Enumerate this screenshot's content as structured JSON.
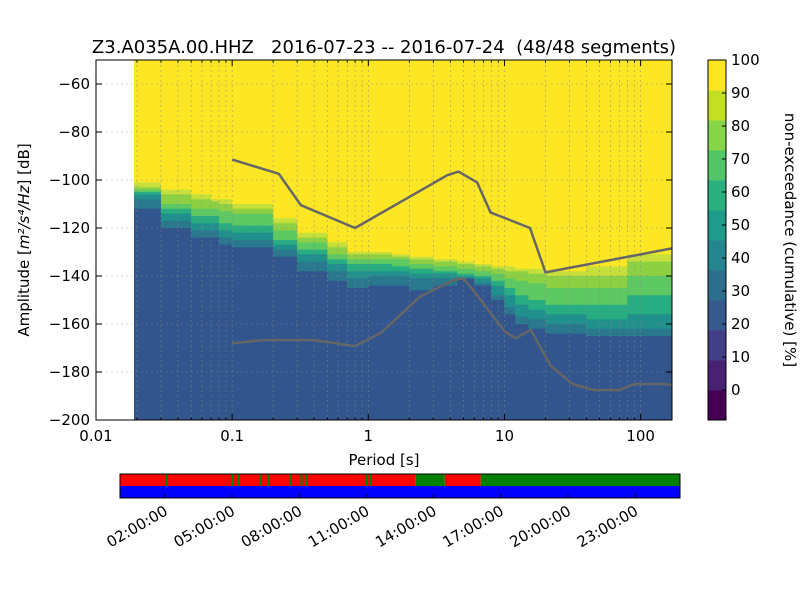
{
  "chart_data": {
    "type": "heatmap",
    "title": "Z3.A035A.00.HHZ   2016-07-23 -- 2016-07-24  (48/48 segments)",
    "xlabel": "Period [s]",
    "ylabel_prefix": "Amplitude [",
    "ylabel_unit": "m²/s⁴/Hz",
    "ylabel_suffix": "] [dB]",
    "x_scale": "log",
    "xlim": [
      0.01,
      170
    ],
    "ylim": [
      -200,
      -50
    ],
    "x_ticks": [
      {
        "value": 0.01,
        "label": "0.01"
      },
      {
        "value": 0.1,
        "label": "0.1"
      },
      {
        "value": 1,
        "label": "1"
      },
      {
        "value": 10,
        "label": "10"
      },
      {
        "value": 100,
        "label": "100"
      }
    ],
    "y_ticks": [
      {
        "value": -60,
        "label": "−60"
      },
      {
        "value": -80,
        "label": "−80"
      },
      {
        "value": -100,
        "label": "−100"
      },
      {
        "value": -120,
        "label": "−120"
      },
      {
        "value": -140,
        "label": "−140"
      },
      {
        "value": -160,
        "label": "−160"
      },
      {
        "value": -180,
        "label": "−180"
      },
      {
        "value": -200,
        "label": "−200"
      }
    ],
    "grid": true,
    "data_start_period": 0.019,
    "bands": [
      {
        "level": 30,
        "color": "#31558c",
        "upper": [
          [
            0.019,
            -112
          ],
          [
            0.03,
            -120
          ],
          [
            0.05,
            -124
          ],
          [
            0.08,
            -127
          ],
          [
            0.1,
            -128
          ],
          [
            0.2,
            -132
          ],
          [
            0.3,
            -138
          ],
          [
            0.5,
            -142
          ],
          [
            0.7,
            -145
          ],
          [
            1,
            -144
          ],
          [
            1.5,
            -144
          ],
          [
            2,
            -146
          ],
          [
            3,
            -144
          ],
          [
            4.5,
            -141
          ],
          [
            6,
            -144
          ],
          [
            8,
            -150
          ],
          [
            10,
            -156
          ],
          [
            12,
            -160
          ],
          [
            15,
            -162
          ],
          [
            20,
            -164
          ],
          [
            40,
            -165
          ],
          [
            80,
            -165
          ],
          [
            170,
            -165
          ]
        ]
      },
      {
        "level": 40,
        "color": "#29788e",
        "upper": [
          [
            0.019,
            -108
          ],
          [
            0.03,
            -117
          ],
          [
            0.05,
            -121
          ],
          [
            0.08,
            -124
          ],
          [
            0.1,
            -125
          ],
          [
            0.2,
            -129
          ],
          [
            0.3,
            -134
          ],
          [
            0.5,
            -138
          ],
          [
            0.7,
            -141
          ],
          [
            1,
            -140
          ],
          [
            1.5,
            -140
          ],
          [
            2,
            -141
          ],
          [
            3,
            -141
          ],
          [
            4.5,
            -141
          ],
          [
            6,
            -143
          ],
          [
            8,
            -148
          ],
          [
            10,
            -153
          ],
          [
            12,
            -157
          ],
          [
            15,
            -158
          ],
          [
            20,
            -160
          ],
          [
            40,
            -162
          ],
          [
            80,
            -162
          ],
          [
            170,
            -160
          ]
        ]
      },
      {
        "level": 50,
        "color": "#20908d",
        "upper": [
          [
            0.019,
            -106
          ],
          [
            0.03,
            -114
          ],
          [
            0.05,
            -118
          ],
          [
            0.08,
            -121
          ],
          [
            0.1,
            -122
          ],
          [
            0.2,
            -127
          ],
          [
            0.3,
            -131
          ],
          [
            0.5,
            -135
          ],
          [
            0.7,
            -138
          ],
          [
            1,
            -138
          ],
          [
            1.5,
            -138
          ],
          [
            2,
            -139
          ],
          [
            3,
            -139
          ],
          [
            4.5,
            -140
          ],
          [
            6,
            -141
          ],
          [
            8,
            -144
          ],
          [
            10,
            -148
          ],
          [
            12,
            -152
          ],
          [
            15,
            -154
          ],
          [
            20,
            -156
          ],
          [
            40,
            -158
          ],
          [
            80,
            -156
          ],
          [
            170,
            -152
          ]
        ]
      },
      {
        "level": 60,
        "color": "#27ad81",
        "upper": [
          [
            0.019,
            -105
          ],
          [
            0.03,
            -112
          ],
          [
            0.05,
            -115
          ],
          [
            0.08,
            -118
          ],
          [
            0.1,
            -119
          ],
          [
            0.2,
            -125
          ],
          [
            0.3,
            -129
          ],
          [
            0.5,
            -133
          ],
          [
            0.7,
            -135
          ],
          [
            1,
            -135
          ],
          [
            1.5,
            -136
          ],
          [
            2,
            -137
          ],
          [
            3,
            -138
          ],
          [
            4.5,
            -139
          ],
          [
            6,
            -140
          ],
          [
            8,
            -142
          ],
          [
            10,
            -145
          ],
          [
            12,
            -148
          ],
          [
            15,
            -150
          ],
          [
            20,
            -152
          ],
          [
            40,
            -152
          ],
          [
            80,
            -148
          ],
          [
            170,
            -144
          ]
        ]
      },
      {
        "level": 70,
        "color": "#5ec962",
        "upper": [
          [
            0.019,
            -104
          ],
          [
            0.03,
            -110
          ],
          [
            0.05,
            -112
          ],
          [
            0.08,
            -113
          ],
          [
            0.1,
            -114
          ],
          [
            0.2,
            -121
          ],
          [
            0.3,
            -126
          ],
          [
            0.5,
            -131
          ],
          [
            0.7,
            -133
          ],
          [
            1,
            -133
          ],
          [
            1.5,
            -133
          ],
          [
            2,
            -135
          ],
          [
            3,
            -136
          ],
          [
            4.5,
            -137
          ],
          [
            6,
            -138
          ],
          [
            8,
            -139
          ],
          [
            10,
            -141
          ],
          [
            12,
            -142
          ],
          [
            15,
            -143
          ],
          [
            20,
            -145
          ],
          [
            40,
            -145
          ],
          [
            80,
            -140
          ],
          [
            170,
            -136
          ]
        ]
      },
      {
        "level": 80,
        "color": "#8ed044",
        "upper": [
          [
            0.019,
            -103
          ],
          [
            0.03,
            -106
          ],
          [
            0.05,
            -108
          ],
          [
            0.07,
            -109
          ],
          [
            0.08,
            -110
          ],
          [
            0.1,
            -112
          ],
          [
            0.2,
            -118
          ],
          [
            0.3,
            -124
          ],
          [
            0.5,
            -128
          ],
          [
            0.7,
            -131
          ],
          [
            1,
            -131
          ],
          [
            1.5,
            -132
          ],
          [
            2,
            -133
          ],
          [
            3,
            -134
          ],
          [
            4.5,
            -135
          ],
          [
            6,
            -136
          ],
          [
            8,
            -137
          ],
          [
            10,
            -138
          ],
          [
            12,
            -138
          ],
          [
            15,
            -139
          ],
          [
            20,
            -140
          ],
          [
            40,
            -140
          ],
          [
            80,
            -134
          ],
          [
            170,
            -128
          ]
        ]
      },
      {
        "level": 90,
        "color": "#c6df3a",
        "upper": [
          [
            0.019,
            -101
          ],
          [
            0.03,
            -104
          ],
          [
            0.05,
            -106
          ],
          [
            0.07,
            -108
          ],
          [
            0.1,
            -110
          ],
          [
            0.2,
            -116
          ],
          [
            0.3,
            -122
          ],
          [
            0.5,
            -126
          ],
          [
            0.7,
            -130
          ],
          [
            1,
            -130
          ],
          [
            1.5,
            -131
          ],
          [
            2,
            -132
          ],
          [
            3,
            -133
          ],
          [
            4.5,
            -134
          ],
          [
            6,
            -135
          ],
          [
            8,
            -136
          ],
          [
            10,
            -136
          ],
          [
            12,
            -137
          ],
          [
            15,
            -137
          ],
          [
            20,
            -138
          ],
          [
            40,
            -136
          ],
          [
            80,
            -131
          ],
          [
            170,
            -125
          ]
        ]
      }
    ],
    "background_level": 100,
    "background_color": "#fde725",
    "noise_models": [
      {
        "points": [
          [
            0.1,
            -91.5
          ],
          [
            0.22,
            -97.4
          ],
          [
            0.32,
            -110.5
          ],
          [
            0.8,
            -120
          ],
          [
            3.8,
            -98
          ],
          [
            4.6,
            -96.5
          ],
          [
            6.3,
            -101
          ],
          [
            7.9,
            -113.5
          ],
          [
            15.4,
            -120
          ],
          [
            20,
            -138.5
          ],
          [
            170,
            -128.5
          ]
        ]
      },
      {
        "points": [
          [
            0.1,
            -168
          ],
          [
            0.17,
            -166.7
          ],
          [
            0.4,
            -166.7
          ],
          [
            0.8,
            -169.2
          ],
          [
            1.24,
            -163.7
          ],
          [
            2.4,
            -148.6
          ],
          [
            4.3,
            -141.5
          ],
          [
            5.0,
            -141.1
          ],
          [
            6.0,
            -146.5
          ],
          [
            10,
            -163
          ],
          [
            12,
            -166
          ],
          [
            15.6,
            -162.4
          ],
          [
            21.9,
            -177.5
          ],
          [
            31.6,
            -185
          ],
          [
            45,
            -187.5
          ],
          [
            70,
            -187.5
          ],
          [
            90,
            -185
          ],
          [
            150,
            -185
          ],
          [
            170,
            -185.5
          ]
        ]
      }
    ],
    "colorbar": {
      "label": "non-exceedance (cumulative) [%]",
      "levels": [
        0,
        10,
        20,
        30,
        40,
        50,
        60,
        70,
        80,
        90,
        100
      ],
      "colors": [
        "#440154",
        "#482173",
        "#433e85",
        "#38598c",
        "#2d708e",
        "#25858e",
        "#1e9b8a",
        "#2ab07f",
        "#52c569",
        "#86d549",
        "#c2df23",
        "#fde725"
      ],
      "ticks": [
        {
          "value": 0,
          "label": "0"
        },
        {
          "value": 10,
          "label": "10"
        },
        {
          "value": 20,
          "label": "20"
        },
        {
          "value": 30,
          "label": "30"
        },
        {
          "value": 40,
          "label": "40"
        },
        {
          "value": 50,
          "label": "50"
        },
        {
          "value": 60,
          "label": "60"
        },
        {
          "value": 70,
          "label": "70"
        },
        {
          "value": 80,
          "label": "80"
        },
        {
          "value": 90,
          "label": "90"
        },
        {
          "value": 100,
          "label": "100"
        }
      ]
    },
    "coverage": {
      "colors": {
        "used": "#0000ff",
        "red": "#ff0000",
        "green": "#008000"
      },
      "time_range_hours": [
        0,
        25
      ],
      "bottom_row": [
        {
          "start": 0,
          "end": 25,
          "color": "#0000ff"
        }
      ],
      "top_row": [
        {
          "start": 0,
          "end": 13.2,
          "color": "#ff0000"
        },
        {
          "start": 13.2,
          "end": 14.5,
          "color": "#008000"
        },
        {
          "start": 14.5,
          "end": 16.1,
          "color": "#ff0000"
        },
        {
          "start": 16.1,
          "end": 25,
          "color": "#008000"
        }
      ],
      "marks": [
        {
          "hour": 2.1,
          "color": "#008000"
        },
        {
          "hour": 5.0,
          "color": "#008000"
        },
        {
          "hour": 5.3,
          "color": "#008000"
        },
        {
          "hour": 6.3,
          "color": "#008000"
        },
        {
          "hour": 6.6,
          "color": "#008000"
        },
        {
          "hour": 7.6,
          "color": "#008000"
        },
        {
          "hour": 8.1,
          "color": "#008000"
        },
        {
          "hour": 8.3,
          "color": "#008000"
        },
        {
          "hour": 11.0,
          "color": "#008000"
        },
        {
          "hour": 11.2,
          "color": "#008000"
        }
      ],
      "ticks": [
        {
          "hour": 2,
          "label": "02:00:00"
        },
        {
          "hour": 5,
          "label": "05:00:00"
        },
        {
          "hour": 8,
          "label": "08:00:00"
        },
        {
          "hour": 11,
          "label": "11:00:00"
        },
        {
          "hour": 14,
          "label": "14:00:00"
        },
        {
          "hour": 17,
          "label": "17:00:00"
        },
        {
          "hour": 20,
          "label": "20:00:00"
        },
        {
          "hour": 23,
          "label": "23:00:00"
        }
      ]
    }
  }
}
